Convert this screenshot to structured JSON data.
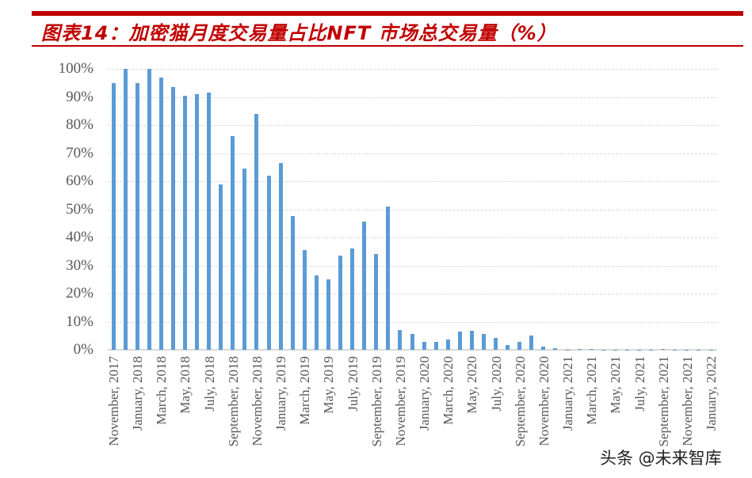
{
  "header": {
    "title": "图表14：加密猫月度交易量占比NFT 市场总交易量（%）",
    "accent_color": "#c00000"
  },
  "watermark": "头条 @未来智库",
  "chart_data": {
    "type": "bar",
    "title": "图表14：加密猫月度交易量占比NFT 市场总交易量（%）",
    "xlabel": "",
    "ylabel": "",
    "ylim": [
      0,
      100
    ],
    "yticks": [
      "0%",
      "10%",
      "20%",
      "30%",
      "40%",
      "50%",
      "60%",
      "70%",
      "80%",
      "90%",
      "100%"
    ],
    "grid": true,
    "legend": null,
    "bar_color": "#5b9bd5",
    "categories": [
      "November, 2017",
      "December, 2017",
      "January, 2018",
      "February, 2018",
      "March, 2018",
      "April, 2018",
      "May, 2018",
      "June, 2018",
      "July, 2018",
      "August, 2018",
      "September, 2018",
      "October, 2018",
      "November, 2018",
      "December, 2018",
      "January, 2019",
      "February, 2019",
      "March, 2019",
      "April, 2019",
      "May, 2019",
      "June, 2019",
      "July, 2019",
      "August, 2019",
      "September, 2019",
      "October, 2019",
      "November, 2019",
      "December, 2019",
      "January, 2020",
      "February, 2020",
      "March, 2020",
      "April, 2020",
      "May, 2020",
      "June, 2020",
      "July, 2020",
      "August, 2020",
      "September, 2020",
      "October, 2020",
      "November, 2020",
      "December, 2020",
      "January, 2021",
      "February, 2021",
      "March, 2021",
      "April, 2021",
      "May, 2021",
      "June, 2021",
      "July, 2021",
      "August, 2021",
      "September, 2021",
      "October, 2021",
      "November, 2021",
      "December, 2021",
      "January, 2022"
    ],
    "values": [
      95,
      100,
      95,
      100,
      97,
      93.5,
      90.5,
      91,
      91.5,
      59,
      76,
      64.5,
      84,
      62,
      66.5,
      47.5,
      35.5,
      26.5,
      25,
      33.5,
      36,
      45.5,
      34,
      51,
      7,
      5.5,
      2.8,
      2.7,
      3.6,
      6.5,
      6.7,
      5.7,
      4.3,
      1.7,
      2.7,
      5.2,
      1.0,
      0.5,
      0.1,
      0.2,
      0.4,
      0.05,
      0.05,
      0.05,
      0.05,
      0.05,
      0.2,
      0.05,
      0.05,
      0.05,
      0.05
    ],
    "xtick_labels": [
      "November, 2017",
      "January, 2018",
      "March, 2018",
      "May, 2018",
      "July, 2018",
      "September, 2018",
      "November, 2018",
      "January, 2019",
      "March, 2019",
      "May, 2019",
      "July, 2019",
      "September, 2019",
      "November, 2019",
      "January, 2020",
      "March, 2020",
      "May, 2020",
      "July, 2020",
      "September, 2020",
      "November, 2020",
      "January, 2021",
      "March, 2021",
      "May, 2021",
      "July, 2021",
      "September, 2021",
      "November, 2021",
      "January, 2022"
    ]
  }
}
